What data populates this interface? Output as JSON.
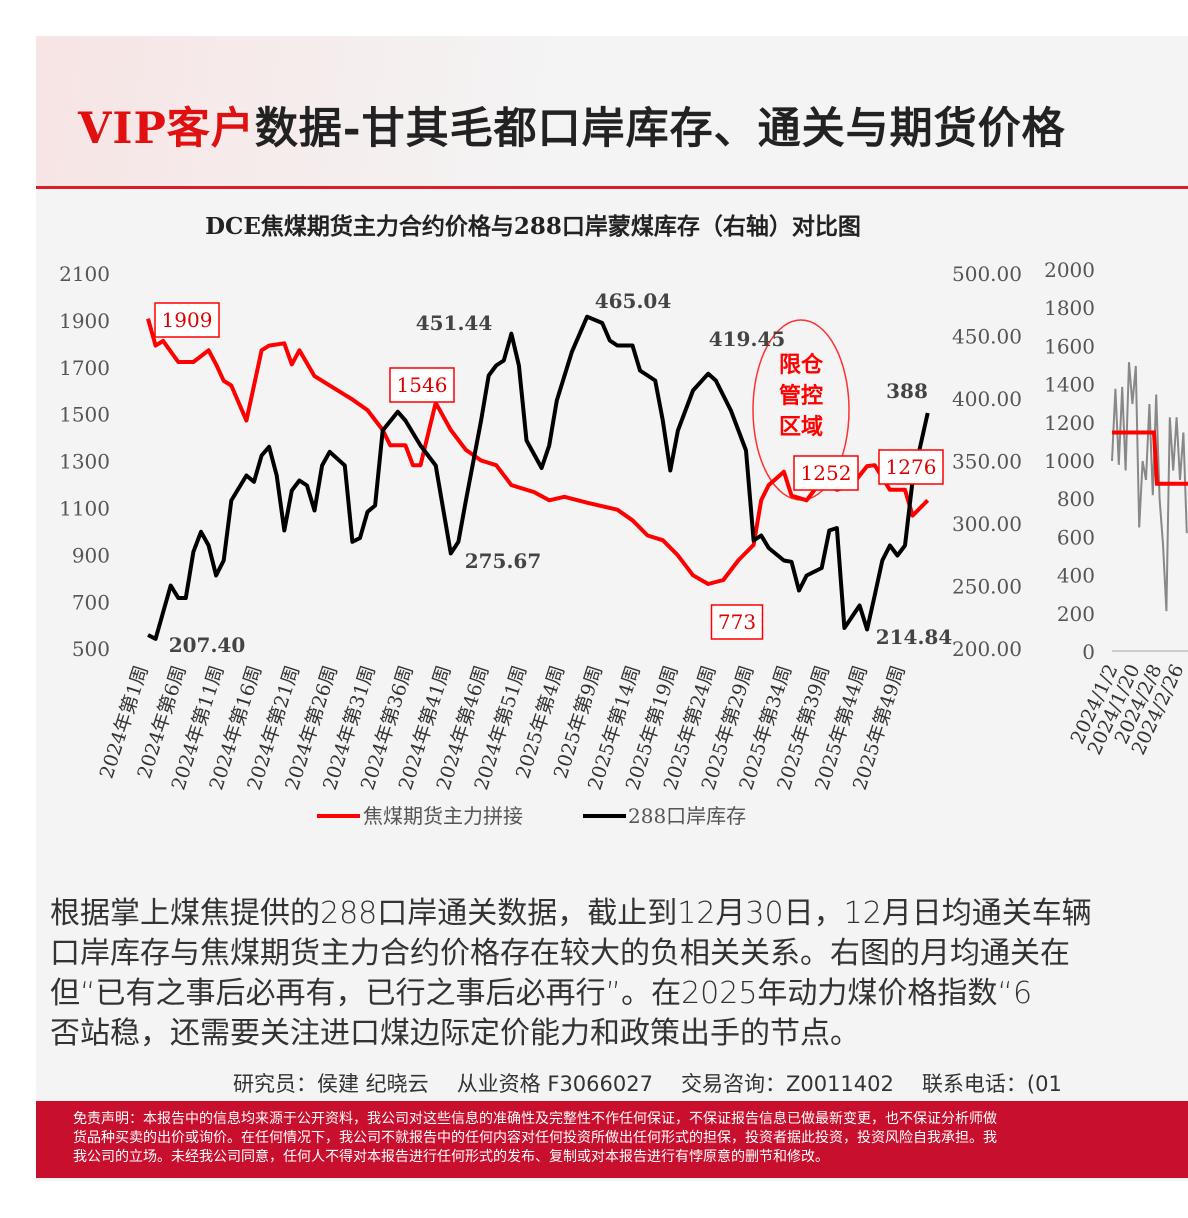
{
  "header": {
    "title_vip": "VIP客户",
    "title_rest": "数据-甘其毛都口岸库存、通关与期货价格"
  },
  "chart_data": [
    {
      "type": "line",
      "title": "DCE焦煤期货主力合约价格与288口岸蒙煤库存（右轴）对比图",
      "left_axis": {
        "range": [
          500,
          2100
        ],
        "ticks": [
          "2100",
          "1900",
          "1700",
          "1500",
          "1300",
          "1100",
          "900",
          "700",
          "500"
        ]
      },
      "right_axis": {
        "range": [
          200,
          500
        ],
        "ticks": [
          "500.00",
          "450.00",
          "400.00",
          "350.00",
          "300.00",
          "250.00",
          "200.00"
        ]
      },
      "x_tick_labels": [
        "2024年第1周",
        "2024年第6周",
        "2024年第11周",
        "2024年第16周",
        "2024年第21周",
        "2024年第26周",
        "2024年第31周",
        "2024年第36周",
        "2024年第41周",
        "2024年第46周",
        "2024年第51周",
        "2025年第4周",
        "2025年第9周",
        "2025年第14周",
        "2025年第19周",
        "2025年第24周",
        "2025年第29周",
        "2025年第34周",
        "2025年第39周",
        "2025年第44周",
        "2025年第49周"
      ],
      "x_tick_week_index": [
        0,
        5,
        10,
        15,
        20,
        25,
        30,
        35,
        40,
        45,
        50,
        55,
        60,
        65,
        70,
        75,
        80,
        85,
        90,
        95,
        100
      ],
      "series": [
        {
          "name": "焦煤期货主力拼接",
          "axis": "left",
          "color": "#ff0000",
          "x": [
            0,
            1,
            2,
            4,
            6,
            8,
            9,
            10,
            11,
            13,
            15,
            16,
            18,
            19,
            20,
            22,
            25,
            26,
            27,
            29,
            31,
            32,
            34,
            35,
            36,
            38,
            40,
            42,
            44,
            46,
            48,
            51,
            53,
            55,
            58,
            62,
            64,
            66,
            68,
            70,
            72,
            74,
            76,
            78,
            80,
            81,
            82,
            84,
            85,
            87,
            89,
            91,
            93,
            95,
            96,
            98,
            100,
            101,
            103
          ],
          "values": [
            1905,
            1790,
            1810,
            1720,
            1720,
            1770,
            1710,
            1640,
            1620,
            1470,
            1770,
            1790,
            1800,
            1710,
            1770,
            1660,
            1600,
            1580,
            1560,
            1515,
            1430,
            1365,
            1365,
            1280,
            1280,
            1546,
            1430,
            1345,
            1300,
            1280,
            1195,
            1165,
            1130,
            1145,
            1120,
            1090,
            1045,
            980,
            960,
            895,
            810,
            773,
            790,
            875,
            940,
            1130,
            1195,
            1252,
            1150,
            1130,
            1215,
            1175,
            1195,
            1276,
            1280,
            1175,
            1175,
            1065,
            1130
          ]
        },
        {
          "name": "288口岸库存",
          "axis": "right",
          "color": "#000000",
          "x": [
            0,
            1,
            3,
            4,
            5,
            6,
            7,
            8,
            9,
            10,
            11,
            13,
            14,
            15,
            16,
            17,
            18,
            19,
            20,
            21,
            22,
            23,
            24,
            26,
            27,
            28,
            29,
            30,
            31,
            33,
            34,
            36,
            37,
            38,
            40,
            41,
            42,
            44,
            45,
            46,
            47,
            48,
            49,
            50,
            52,
            53,
            54,
            56,
            58,
            60,
            61,
            62,
            64,
            65,
            67,
            68,
            69,
            70,
            72,
            74,
            75,
            77,
            79,
            80,
            81,
            82,
            84,
            85,
            86,
            87,
            89,
            90,
            91,
            92,
            94,
            95,
            96,
            97,
            98,
            99,
            100,
            101,
            103
          ],
          "values": [
            210.4,
            207.4,
            250,
            240,
            240,
            277,
            293,
            282,
            258,
            270,
            318,
            338,
            333,
            354,
            361,
            338,
            294,
            326,
            334,
            330,
            310,
            346,
            357,
            346,
            285,
            288,
            309,
            314,
            374,
            389,
            382,
            362,
            354,
            346,
            275.67,
            285,
            318,
            382,
            418,
            426,
            430,
            451.44,
            426,
            366,
            344,
            362,
            398,
            437,
            465.04,
            460,
            446,
            442,
            442,
            422,
            414,
            382,
            342,
            374,
            406,
            419.45,
            414,
            390,
            358,
            286,
            290,
            280,
            270,
            269,
            246,
            258,
            264,
            294,
            296,
            216,
            234,
            214.84,
            242,
            270,
            282,
            274,
            282,
            334,
            388
          ]
        }
      ],
      "annotations": {
        "red": [
          "1909",
          "1546",
          "773",
          "1252",
          "1276"
        ],
        "black": [
          "451.44",
          "465.04",
          "419.45",
          "388",
          "275.67",
          "207.40",
          "214.84"
        ],
        "region": [
          "限仓",
          "管控",
          "区域"
        ]
      },
      "legend": [
        "焦煤期货主力拼接",
        "288口岸库存"
      ],
      "legend_placement": "bottom"
    },
    {
      "type": "line",
      "y_axis": {
        "range": [
          0,
          2000
        ],
        "ticks": [
          "2000",
          "1800",
          "1600",
          "1400",
          "1200",
          "1000",
          "800",
          "600",
          "400",
          "200",
          "0"
        ]
      },
      "x_tick_labels": [
        "2024/1/2",
        "2024/1/20",
        "2024/2/8",
        "2024/2/26"
      ],
      "series": [
        {
          "name": "daily",
          "color": "#888888",
          "values": [
            1000,
            1380,
            980,
            1390,
            950,
            1520,
            1300,
            1500,
            650,
            1000,
            900,
            1300,
            820,
            1350,
            800,
            560,
            210,
            1230,
            950,
            1230,
            900,
            1150,
            620
          ]
        },
        {
          "name": "monthly-avg",
          "color": "#ff0000",
          "values": [
            1150,
            1150,
            1150,
            880,
            880
          ]
        }
      ]
    }
  ],
  "body": [
    "根据掌上煤焦提供的288口岸通关数据，截止到12月30日，12月日均通关车辆",
    "口岸库存与焦煤期货主力合约价格存在较大的负相关关系。右图的月均通关在",
    "但“已有之事后必再有，已行之事后必再行”。在2025年动力煤价格指数“6",
    "否站稳，还需要关注进口煤边际定价能力和政策出手的节点。"
  ],
  "footer": {
    "researcher": "研究员：侯建 纪晓云",
    "license": "从业资格 F3066027",
    "consult": "交易咨询：Z0011402",
    "phone": "联系电话：(01"
  },
  "disclaimer": [
    "免责声明：本报告中的信息均来源于公开资料，我公司对这些信息的准确性及完整性不作任何保证，不保证报告信息已做最新变更，也不保证分析师做",
    "货品种买卖的出价或询价。在任何情况下，我公司不就报告中的任何内容对任何投资所做出任何形式的担保，投资者据此投资，投资风险自我承担。我",
    "我公司的立场。未经我公司同意，任何人不得对本报告进行任何形式的发布、复制或对本报告进行有悖原意的删节和修改。"
  ]
}
